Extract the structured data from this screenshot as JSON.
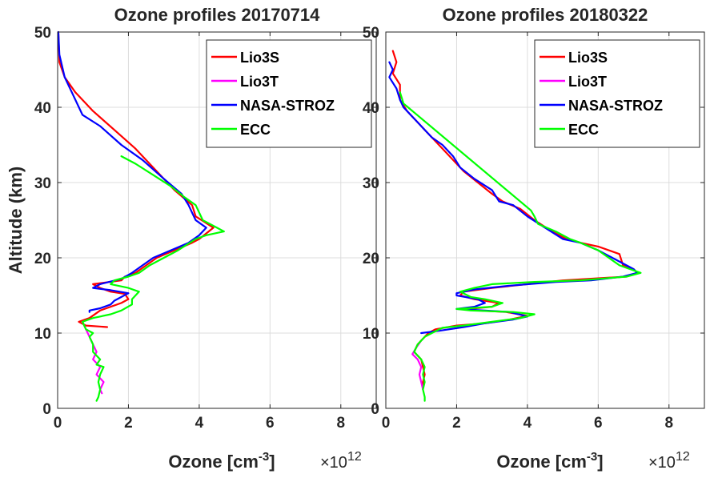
{
  "chart_data": [
    {
      "type": "line",
      "title": "Ozone profiles 20170714",
      "xlabel": "Ozone [cm",
      "xlabel_sup": "-3",
      "xlabel_end": "]",
      "x_exponent_base": "×10",
      "x_exponent_power": "12",
      "ylabel": "Altitude (km)",
      "xlim": [
        0,
        9
      ],
      "ylim": [
        0,
        50
      ],
      "xticks": [
        0,
        2,
        4,
        6,
        8
      ],
      "yticks": [
        0,
        10,
        20,
        30,
        40,
        50
      ],
      "grid": true,
      "legend_position": "top-right",
      "series": [
        {
          "name": "Lio3S",
          "color": "#ff0000",
          "points": [
            [
              0.02,
              50
            ],
            [
              0.05,
              46
            ],
            [
              0.2,
              44
            ],
            [
              0.5,
              42
            ],
            [
              1.0,
              39.5
            ],
            [
              1.6,
              37
            ],
            [
              2.2,
              34.5
            ],
            [
              2.9,
              31
            ],
            [
              3.3,
              29
            ],
            [
              3.8,
              27
            ],
            [
              3.9,
              25.5
            ],
            [
              4.4,
              24
            ],
            [
              4.0,
              22.5
            ],
            [
              3.8,
              22
            ],
            [
              3.3,
              21
            ],
            [
              2.8,
              20
            ],
            [
              2.5,
              19
            ],
            [
              2.2,
              18
            ],
            [
              1.9,
              17.5
            ],
            [
              1.8,
              17
            ],
            [
              1.0,
              16.5
            ],
            [
              1.2,
              16
            ],
            [
              1.5,
              15.5
            ],
            [
              1.9,
              15.2
            ],
            [
              2.0,
              14.5
            ],
            [
              1.8,
              14
            ],
            [
              1.5,
              13.5
            ],
            [
              1.2,
              13
            ],
            [
              0.9,
              12
            ],
            [
              0.6,
              11.5
            ],
            [
              0.8,
              11
            ],
            [
              1.4,
              10.8
            ]
          ]
        },
        {
          "name": "Lio3T",
          "color": "#ff00ff",
          "points": [
            [
              0.7,
              11.5
            ],
            [
              0.8,
              10.5
            ],
            [
              0.9,
              9.5
            ],
            [
              1.0,
              8.5
            ],
            [
              1.1,
              7.5
            ],
            [
              1.0,
              6.5
            ],
            [
              1.2,
              5.5
            ],
            [
              1.1,
              4.5
            ],
            [
              1.3,
              3.5
            ],
            [
              1.2,
              2.5
            ],
            [
              1.25,
              2
            ]
          ]
        },
        {
          "name": "NASA-STROZ",
          "color": "#0000ff",
          "points": [
            [
              0.02,
              50
            ],
            [
              0.05,
              47
            ],
            [
              0.2,
              44
            ],
            [
              0.4,
              42
            ],
            [
              0.7,
              39
            ],
            [
              1.2,
              37.5
            ],
            [
              1.8,
              35
            ],
            [
              2.4,
              33
            ],
            [
              3.0,
              30.5
            ],
            [
              3.5,
              28.5
            ],
            [
              3.7,
              27
            ],
            [
              3.8,
              26
            ],
            [
              3.9,
              25
            ],
            [
              4.2,
              24
            ],
            [
              4.0,
              23
            ],
            [
              3.7,
              22
            ],
            [
              3.2,
              21
            ],
            [
              2.7,
              20
            ],
            [
              2.4,
              19
            ],
            [
              2.1,
              18
            ],
            [
              1.8,
              17.2
            ],
            [
              1.2,
              16.5
            ],
            [
              1.0,
              16
            ],
            [
              1.5,
              15.7
            ],
            [
              2.0,
              15.3
            ],
            [
              1.8,
              14.8
            ],
            [
              1.6,
              14.3
            ],
            [
              1.5,
              13.8
            ],
            [
              1.2,
              13.3
            ],
            [
              0.9,
              13
            ],
            [
              0.9,
              12.8
            ]
          ]
        },
        {
          "name": "ECC",
          "color": "#00ff00",
          "points": [
            [
              1.8,
              33.5
            ],
            [
              2.2,
              32.5
            ],
            [
              2.7,
              31
            ],
            [
              3.2,
              29.5
            ],
            [
              3.6,
              28
            ],
            [
              3.9,
              27
            ],
            [
              4.0,
              26
            ],
            [
              4.1,
              25
            ],
            [
              4.5,
              24
            ],
            [
              4.7,
              23.5
            ],
            [
              4.2,
              23
            ],
            [
              3.9,
              22.5
            ],
            [
              3.4,
              21
            ],
            [
              3.0,
              20
            ],
            [
              2.6,
              19
            ],
            [
              2.3,
              18
            ],
            [
              2.0,
              17.5
            ],
            [
              1.6,
              17
            ],
            [
              1.5,
              16.5
            ],
            [
              2.0,
              16
            ],
            [
              2.3,
              15.5
            ],
            [
              2.2,
              15
            ],
            [
              2.1,
              14.5
            ],
            [
              2.1,
              13.8
            ],
            [
              1.8,
              13
            ],
            [
              1.5,
              12.5
            ],
            [
              1.0,
              12
            ],
            [
              0.7,
              11.5
            ],
            [
              0.8,
              10.5
            ],
            [
              1.0,
              10
            ],
            [
              0.9,
              9.5
            ],
            [
              1.0,
              8.5
            ],
            [
              1.0,
              7.5
            ],
            [
              1.2,
              6.5
            ],
            [
              1.1,
              5.8
            ],
            [
              1.3,
              5.5
            ],
            [
              1.2,
              4.5
            ],
            [
              1.15,
              3.5
            ],
            [
              1.2,
              2.5
            ],
            [
              1.15,
              1.5
            ],
            [
              1.1,
              1
            ]
          ]
        }
      ]
    },
    {
      "type": "line",
      "title": "Ozone profiles 20180322",
      "xlabel": "Ozone [cm",
      "xlabel_sup": "-3",
      "xlabel_end": "]",
      "x_exponent_base": "×10",
      "x_exponent_power": "12",
      "ylabel": "",
      "xlim": [
        0,
        9
      ],
      "ylim": [
        0,
        50
      ],
      "xticks": [
        0,
        2,
        4,
        6,
        8
      ],
      "yticks": [
        0,
        10,
        20,
        30,
        40,
        50
      ],
      "grid": true,
      "legend_position": "top-right",
      "series": [
        {
          "name": "Lio3S",
          "color": "#ff0000",
          "points": [
            [
              0.2,
              47.5
            ],
            [
              0.3,
              46
            ],
            [
              0.2,
              44.5
            ],
            [
              0.4,
              43
            ],
            [
              0.4,
              41
            ],
            [
              0.6,
              39.5
            ],
            [
              0.9,
              38
            ],
            [
              1.1,
              37
            ],
            [
              1.3,
              36
            ],
            [
              1.7,
              34
            ],
            [
              1.9,
              33
            ],
            [
              2.2,
              31.5
            ],
            [
              2.6,
              30
            ],
            [
              3.0,
              28.5
            ],
            [
              3.3,
              27.5
            ],
            [
              3.8,
              26.5
            ],
            [
              4.2,
              25
            ],
            [
              4.7,
              23.5
            ],
            [
              5.1,
              22.5
            ],
            [
              5.5,
              22
            ],
            [
              6.0,
              21.5
            ],
            [
              6.6,
              20.5
            ],
            [
              6.7,
              19
            ],
            [
              7.0,
              18.5
            ],
            [
              7.1,
              18
            ],
            [
              6.8,
              17.5
            ],
            [
              5.0,
              17
            ],
            [
              4.0,
              16.5
            ],
            [
              3.0,
              16
            ],
            [
              2.2,
              15.5
            ],
            [
              2.1,
              15
            ],
            [
              2.5,
              14.5
            ],
            [
              3.2,
              14
            ],
            [
              3.0,
              13.5
            ],
            [
              2.3,
              13.2
            ],
            [
              2.6,
              13
            ],
            [
              3.4,
              12.8
            ],
            [
              4.0,
              12.3
            ],
            [
              3.5,
              11.8
            ],
            [
              2.8,
              11.3
            ],
            [
              2.0,
              11
            ],
            [
              1.4,
              10.5
            ],
            [
              1.2,
              10
            ],
            [
              1.0,
              9
            ],
            [
              0.9,
              8.5
            ],
            [
              0.8,
              7.5
            ],
            [
              1.0,
              6.5
            ],
            [
              1.05,
              5.5
            ],
            [
              1.1,
              4.5
            ],
            [
              1.05,
              3.5
            ],
            [
              1.05,
              2.5
            ]
          ]
        },
        {
          "name": "Lio3T",
          "color": "#ff00ff",
          "points": [
            [
              1.0,
              9
            ],
            [
              0.85,
              8
            ],
            [
              0.75,
              7.2
            ],
            [
              0.9,
              6.5
            ],
            [
              1.0,
              5.5
            ],
            [
              0.95,
              4.5
            ],
            [
              1.0,
              3.5
            ],
            [
              1.05,
              2.5
            ]
          ]
        },
        {
          "name": "NASA-STROZ",
          "color": "#0000ff",
          "points": [
            [
              0.1,
              46
            ],
            [
              0.2,
              45
            ],
            [
              0.1,
              44
            ],
            [
              0.3,
              42.5
            ],
            [
              0.4,
              41
            ],
            [
              0.5,
              40
            ],
            [
              0.8,
              38.5
            ],
            [
              1.0,
              37.5
            ],
            [
              1.3,
              36
            ],
            [
              1.6,
              35
            ],
            [
              1.9,
              33.5
            ],
            [
              2.1,
              32
            ],
            [
              2.5,
              30.5
            ],
            [
              3.0,
              29
            ],
            [
              3.2,
              27.5
            ],
            [
              3.6,
              27
            ],
            [
              4.0,
              25.5
            ],
            [
              4.5,
              24
            ],
            [
              5.0,
              22.5
            ],
            [
              5.5,
              22
            ],
            [
              6.0,
              21
            ],
            [
              6.4,
              20
            ],
            [
              6.8,
              19
            ],
            [
              7.0,
              18.5
            ],
            [
              7.1,
              18
            ],
            [
              6.7,
              17.5
            ],
            [
              5.8,
              17
            ],
            [
              4.8,
              16.8
            ],
            [
              3.5,
              16.3
            ],
            [
              2.5,
              15.8
            ],
            [
              2.0,
              15.3
            ],
            [
              2.0,
              15
            ],
            [
              2.6,
              14.5
            ],
            [
              2.8,
              14
            ],
            [
              2.5,
              13.5
            ],
            [
              2.0,
              13.2
            ],
            [
              2.8,
              13
            ],
            [
              3.5,
              12.8
            ],
            [
              4.0,
              12.2
            ],
            [
              3.6,
              11.8
            ],
            [
              2.8,
              11.3
            ],
            [
              2.2,
              10.8
            ],
            [
              1.5,
              10.3
            ],
            [
              1.0,
              10
            ]
          ]
        },
        {
          "name": "ECC",
          "color": "#00ff00",
          "points": [
            [
              0.4,
              42
            ],
            [
              0.5,
              40.5
            ],
            [
              4.1,
              26.3
            ],
            [
              4.2,
              25.5
            ],
            [
              4.3,
              24.5
            ],
            [
              4.8,
              23.5
            ],
            [
              5.2,
              22.5
            ],
            [
              5.5,
              22
            ],
            [
              6.0,
              21
            ],
            [
              6.3,
              20
            ],
            [
              6.6,
              19
            ],
            [
              6.9,
              18.5
            ],
            [
              7.2,
              18
            ],
            [
              6.8,
              17.5
            ],
            [
              5.5,
              17
            ],
            [
              4.2,
              16.8
            ],
            [
              3.0,
              16.5
            ],
            [
              2.5,
              16
            ],
            [
              2.1,
              15.5
            ],
            [
              2.4,
              14.8
            ],
            [
              2.8,
              14.5
            ],
            [
              3.3,
              14
            ],
            [
              3.0,
              13.5
            ],
            [
              2.0,
              13.2
            ],
            [
              2.4,
              13
            ],
            [
              3.6,
              12.8
            ],
            [
              4.2,
              12.5
            ],
            [
              3.8,
              12
            ],
            [
              3.0,
              11.5
            ],
            [
              2.2,
              11
            ],
            [
              1.6,
              10.7
            ],
            [
              1.3,
              10
            ],
            [
              1.1,
              9.5
            ],
            [
              0.9,
              8.5
            ],
            [
              0.8,
              7.5
            ],
            [
              1.0,
              6.5
            ],
            [
              1.1,
              5.5
            ],
            [
              1.05,
              4.5
            ],
            [
              1.1,
              3.5
            ],
            [
              1.05,
              2.5
            ],
            [
              1.1,
              1.5
            ],
            [
              1.1,
              1
            ]
          ]
        }
      ]
    }
  ]
}
